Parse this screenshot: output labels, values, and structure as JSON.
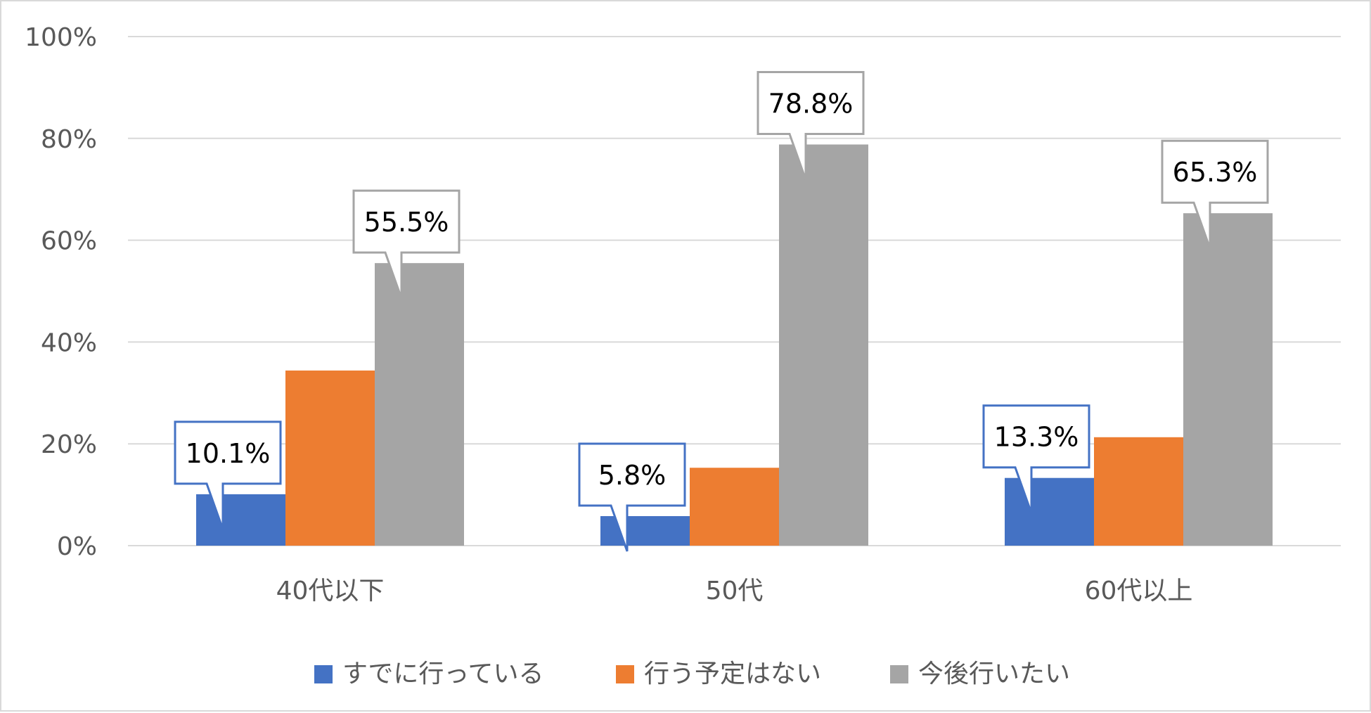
{
  "chart_data": {
    "type": "bar",
    "title": "",
    "xlabel": "",
    "ylabel": "",
    "ylim": [
      0,
      100
    ],
    "yticks": [
      "0%",
      "20%",
      "40%",
      "60%",
      "80%",
      "100%"
    ],
    "categories": [
      "40代以下",
      "50代",
      "60代以上"
    ],
    "series": [
      {
        "name": "すでに行っている",
        "color": "#4472c4",
        "values": [
          10.1,
          5.8,
          13.3
        ],
        "labels": [
          "10.1%",
          "5.8%",
          "13.3%"
        ]
      },
      {
        "name": "行う予定はない",
        "color": "#ed7d31",
        "values": [
          34.4,
          15.3,
          21.3
        ],
        "labels": [
          null,
          null,
          null
        ]
      },
      {
        "name": "今後行いたい",
        "color": "#a5a5a5",
        "values": [
          55.5,
          78.8,
          65.3
        ],
        "labels": [
          "55.5%",
          "78.8%",
          "65.3%"
        ]
      }
    ],
    "grid": true,
    "legend_position": "bottom"
  },
  "colors": {
    "gridline": "#d9d9d9",
    "axis_text": "#595959",
    "callout_fill": "#ffffff"
  }
}
